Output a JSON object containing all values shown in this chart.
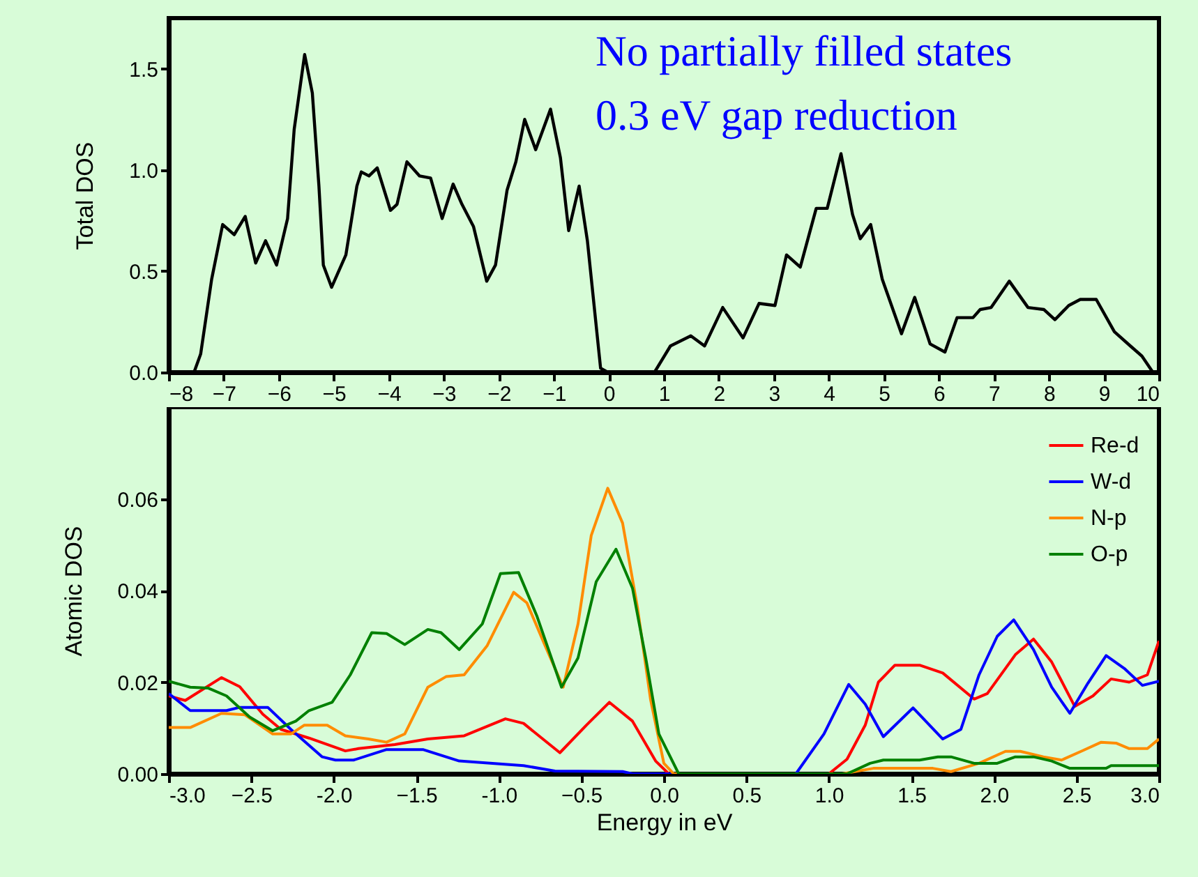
{
  "chart_data": [
    {
      "type": "line",
      "ylabel": "Total DOS",
      "annotations": [
        "No partially filled states",
        "0.3 eV gap reduction"
      ],
      "xlim": [
        -8,
        10
      ],
      "xticks": [
        -8,
        -7,
        -6,
        -5,
        -4,
        -3,
        -2,
        -1,
        0,
        1,
        2,
        3,
        4,
        5,
        6,
        7,
        8,
        9,
        10
      ],
      "ylim": [
        0,
        1.75
      ],
      "yticks": [
        {
          "value": 0,
          "label": "0.0"
        },
        0.5,
        {
          "value": 1,
          "label": "1.0"
        },
        1.5
      ],
      "grid": false,
      "legend": false,
      "series": [
        {
          "color": "#000000",
          "x": [
            -8,
            -7.54,
            -7.42,
            -7.22,
            -7.02,
            -6.81,
            -6.61,
            -6.42,
            -6.24,
            -6.04,
            -5.84,
            -5.72,
            -5.53,
            -5.39,
            -5.27,
            -5.19,
            -5.04,
            -4.78,
            -4.58,
            -4.5,
            -4.36,
            -4.21,
            -3.97,
            -3.85,
            -3.67,
            -3.44,
            -3.24,
            -3.03,
            -2.83,
            -2.67,
            -2.46,
            -2.22,
            -2.06,
            -1.85,
            -1.69,
            -1.53,
            -1.33,
            -1.06,
            -0.88,
            -0.73,
            -0.54,
            -0.39,
            -0.15,
            -0.02,
            0.83,
            1.12,
            1.49,
            1.74,
            2.07,
            2.44,
            2.73,
            3.02,
            3.23,
            3.48,
            3.77,
            3.97,
            4.22,
            4.43,
            4.57,
            4.76,
            4.97,
            5.32,
            5.56,
            5.84,
            6.11,
            6.33,
            6.62,
            6.75,
            6.95,
            7.28,
            7.62,
            7.91,
            8.11,
            8.36,
            8.57,
            8.86,
            9.19,
            9.48,
            9.69,
            9.89
          ],
          "values": [
            0,
            0,
            0.09,
            0.46,
            0.73,
            0.68,
            0.77,
            0.54,
            0.65,
            0.53,
            0.76,
            1.2,
            1.57,
            1.38,
            0.92,
            0.53,
            0.42,
            0.58,
            0.92,
            0.99,
            0.97,
            1.01,
            0.8,
            0.83,
            1.04,
            0.97,
            0.96,
            0.76,
            0.93,
            0.83,
            0.72,
            0.45,
            0.53,
            0.9,
            1.04,
            1.25,
            1.1,
            1.3,
            1.06,
            0.7,
            0.92,
            0.65,
            0.02,
            0,
            0,
            0.13,
            0.18,
            0.13,
            0.32,
            0.17,
            0.34,
            0.33,
            0.58,
            0.52,
            0.81,
            0.81,
            1.08,
            0.78,
            0.66,
            0.73,
            0.46,
            0.19,
            0.37,
            0.14,
            0.1,
            0.27,
            0.27,
            0.31,
            0.32,
            0.45,
            0.32,
            0.31,
            0.26,
            0.33,
            0.36,
            0.36,
            0.2,
            0.13,
            0.08,
            0
          ]
        }
      ]
    },
    {
      "type": "line",
      "xlabel": "Energy in eV",
      "ylabel": "Atomic DOS",
      "xlim": [
        -3,
        3
      ],
      "xticks": [
        {
          "value": -3,
          "label": "-3.0"
        },
        -2.5,
        {
          "value": -2,
          "label": "-2.0"
        },
        -1.5,
        {
          "value": -1,
          "label": "-1.0"
        },
        -0.5,
        {
          "value": 0,
          "label": "0.0"
        },
        0.5,
        {
          "value": 1,
          "label": "1.0"
        },
        1.5,
        {
          "value": 2,
          "label": "2.0"
        },
        2.5,
        {
          "value": 3,
          "label": "3.0"
        }
      ],
      "ylim": [
        0,
        0.08
      ],
      "yticks": [
        {
          "value": 0,
          "label": "0.00"
        },
        {
          "value": 0.02,
          "label": "0.02"
        },
        {
          "value": 0.04,
          "label": "0.04"
        },
        {
          "value": 0.06,
          "label": "0.06"
        }
      ],
      "grid": false,
      "legend": "top right",
      "series": [
        {
          "name": "Re-d",
          "color": "#ff0000",
          "x": [
            -3,
            -2.9,
            -2.68,
            -2.57,
            -2.43,
            -2.32,
            -2.15,
            -1.93,
            -1.85,
            -1.63,
            -1.43,
            -1.21,
            -0.96,
            -0.85,
            -0.63,
            -0.47,
            -0.33,
            -0.19,
            -0.05,
            0.03,
            1.0,
            1.11,
            1.22,
            1.3,
            1.4,
            1.55,
            1.69,
            1.88,
            1.96,
            2.13,
            2.24,
            2.35,
            2.49,
            2.6,
            2.71,
            2.82,
            2.93,
            3.0
          ],
          "values": [
            0.017,
            0.016,
            0.021,
            0.019,
            0.013,
            0.0097,
            0.0078,
            0.005,
            0.0055,
            0.0064,
            0.0076,
            0.0083,
            0.012,
            0.011,
            0.0046,
            0.0106,
            0.0156,
            0.0115,
            0.0028,
            0,
            0,
            0.0032,
            0.0106,
            0.02,
            0.0237,
            0.0237,
            0.022,
            0.0163,
            0.0175,
            0.026,
            0.0294,
            0.0244,
            0.0147,
            0.017,
            0.0207,
            0.02,
            0.0216,
            0.029
          ]
        },
        {
          "name": "W-d",
          "color": "#0000ff",
          "x": [
            -3,
            -2.87,
            -2.65,
            -2.57,
            -2.4,
            -2.26,
            -2.07,
            -1.99,
            -1.88,
            -1.68,
            -1.46,
            -1.24,
            -0.85,
            -0.66,
            -0.25,
            -0.19,
            0.8,
            0.97,
            1.12,
            1.22,
            1.33,
            1.51,
            1.69,
            1.8,
            1.91,
            2.02,
            2.12,
            2.24,
            2.35,
            2.46,
            2.57,
            2.68,
            2.79,
            2.9,
            3.0
          ],
          "values": [
            0.0175,
            0.0138,
            0.0138,
            0.0145,
            0.0145,
            0.0097,
            0.0037,
            0.003,
            0.003,
            0.0053,
            0.0053,
            0.0028,
            0.0018,
            0.0006,
            0.0005,
            0,
            0,
            0.0087,
            0.0195,
            0.0152,
            0.0081,
            0.0144,
            0.0076,
            0.0097,
            0.0216,
            0.03,
            0.0336,
            0.0271,
            0.0189,
            0.0132,
            0.0198,
            0.0258,
            0.023,
            0.0193,
            0.0202
          ]
        },
        {
          "name": "N-p",
          "color": "#ff8c00",
          "x": [
            -3,
            -2.87,
            -2.68,
            -2.54,
            -2.37,
            -2.26,
            -2.18,
            -2.04,
            -1.93,
            -1.79,
            -1.68,
            -1.57,
            -1.43,
            -1.32,
            -1.21,
            -1.07,
            -0.91,
            -0.83,
            -0.72,
            -0.61,
            -0.52,
            -0.44,
            -0.34,
            -0.25,
            -0.16,
            -0.08,
            0,
            0.06,
            1.08,
            1.27,
            1.63,
            1.74,
            1.91,
            2.07,
            2.16,
            2.3,
            2.41,
            2.54,
            2.65,
            2.74,
            2.82,
            2.93,
            3.0
          ],
          "values": [
            0.0101,
            0.0101,
            0.0132,
            0.0129,
            0.0087,
            0.0087,
            0.0106,
            0.0106,
            0.0083,
            0.0076,
            0.0069,
            0.0087,
            0.0189,
            0.0212,
            0.0216,
            0.028,
            0.0396,
            0.0373,
            0.028,
            0.0189,
            0.0327,
            0.052,
            0.0623,
            0.0547,
            0.0363,
            0.0161,
            0.0023,
            0,
            0,
            0.0012,
            0.0012,
            0.0005,
            0.0023,
            0.0049,
            0.0049,
            0.0037,
            0.003,
            0.0051,
            0.0069,
            0.0067,
            0.0055,
            0.0055,
            0.0076
          ]
        },
        {
          "name": "O-p",
          "color": "#008000",
          "x": [
            -3,
            -2.87,
            -2.76,
            -2.65,
            -2.51,
            -2.37,
            -2.23,
            -2.15,
            -2.01,
            -1.9,
            -1.77,
            -1.68,
            -1.57,
            -1.43,
            -1.35,
            -1.24,
            -1.1,
            -0.99,
            -0.88,
            -0.77,
            -0.62,
            -0.52,
            -0.41,
            -0.29,
            -0.19,
            -0.11,
            -0.03,
            0.09,
            1.11,
            1.25,
            1.33,
            1.55,
            1.66,
            1.74,
            1.88,
            2.02,
            2.13,
            2.24,
            2.35,
            2.46,
            2.68,
            2.71,
            3.0
          ],
          "values": [
            0.0202,
            0.0189,
            0.0187,
            0.017,
            0.0124,
            0.0094,
            0.0115,
            0.0138,
            0.0156,
            0.0216,
            0.0308,
            0.0306,
            0.0282,
            0.0315,
            0.0308,
            0.0271,
            0.0327,
            0.0437,
            0.0439,
            0.0345,
            0.0189,
            0.0253,
            0.0419,
            0.049,
            0.0405,
            0.0253,
            0.0087,
            0,
            0,
            0.0023,
            0.003,
            0.003,
            0.0037,
            0.0037,
            0.0023,
            0.0023,
            0.0037,
            0.0037,
            0.0028,
            0.0012,
            0.0012,
            0.0018,
            0.0018
          ]
        }
      ]
    }
  ]
}
